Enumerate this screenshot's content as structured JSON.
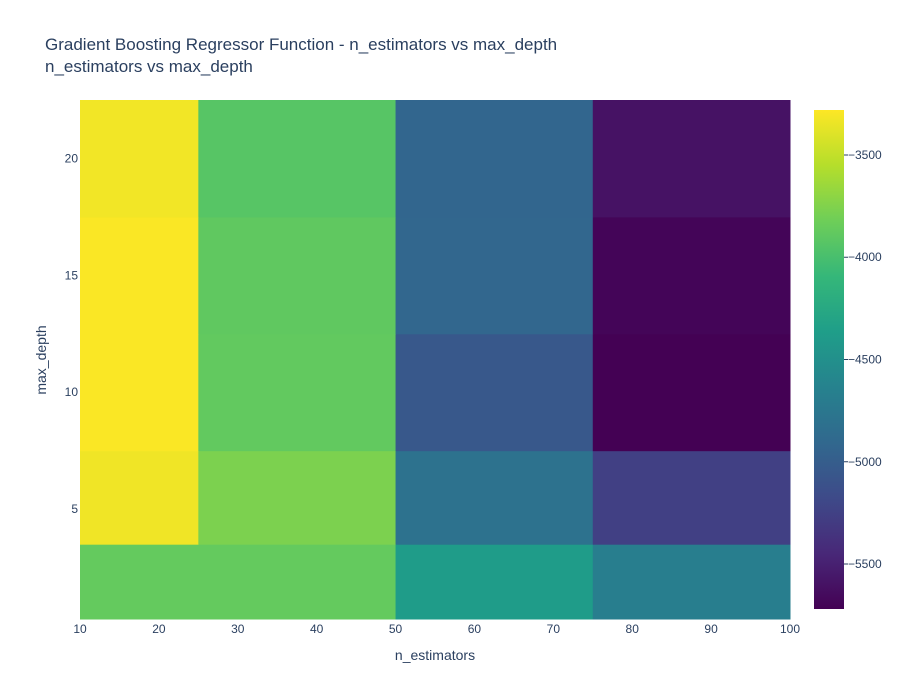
{
  "chart_data": {
    "type": "heatmap",
    "title": "Gradient Boosting Regressor Function - n_estimators vs max_depth",
    "subtitle": "n_estimators vs max_depth",
    "xlabel": "n_estimators",
    "ylabel": "max_depth",
    "x_edges": [
      10,
      25,
      50,
      75,
      100
    ],
    "y_edges": [
      0.3,
      3.5,
      7.5,
      12.5,
      17.5,
      22.5
    ],
    "xlim": [
      10,
      100
    ],
    "ylim": [
      0.3,
      22.5
    ],
    "x_ticks": [
      10,
      20,
      30,
      40,
      50,
      60,
      70,
      80,
      90,
      100
    ],
    "y_ticks": [
      5,
      10,
      15,
      20
    ],
    "z": [
      [
        -3870,
        -3870,
        -4380,
        -4680
      ],
      [
        -3330,
        -3770,
        -4800,
        -5260
      ],
      [
        -3290,
        -3880,
        -5050,
        -5720
      ],
      [
        -3290,
        -3890,
        -4920,
        -5690
      ],
      [
        -3320,
        -3930,
        -4930,
        -5600
      ]
    ],
    "colorscale": "Viridis",
    "zmin": -5720,
    "zmax": -3280,
    "colorbar_ticks": [
      -3500,
      -4000,
      -4500,
      -5000,
      -5500
    ],
    "colorbar_ticks_text": [
      "−3500",
      "−4000",
      "−4500",
      "−5000",
      "−5500"
    ],
    "grid": false,
    "colors": {
      "text": "#2a3f5f",
      "background": "#ffffff"
    }
  }
}
